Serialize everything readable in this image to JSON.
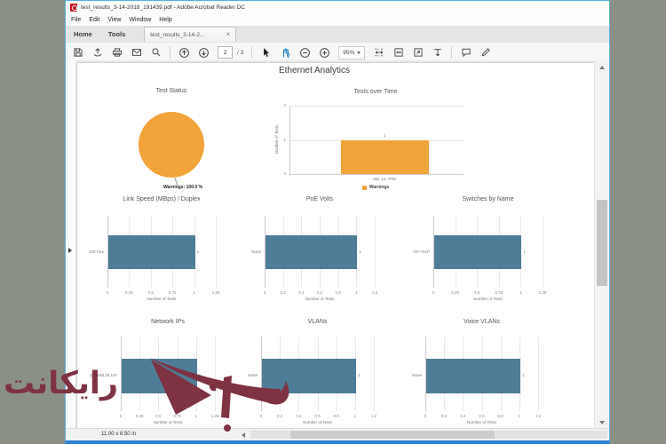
{
  "window": {
    "title": "test_results_3-14-2018_191439.pdf - Adobe Acrobat Reader DC"
  },
  "menu": {
    "items": [
      "File",
      "Edit",
      "View",
      "Window",
      "Help"
    ]
  },
  "tabs": {
    "home": "Home",
    "tools": "Tools",
    "document": "test_results_3-14-2...",
    "close": "×"
  },
  "toolbar": {
    "page_current": "2",
    "page_total": "/ 3",
    "zoom_level": "95%"
  },
  "doc": {
    "heading": "Ethernet Analytics"
  },
  "statusbar": {
    "page_size": "11.00 x 8.50 in"
  },
  "watermark": {
    "text": "رایکانت",
    "color": "#7e3242"
  },
  "colors": {
    "accent_orange": "#F2A33A",
    "accent_teal": "#4F7C96",
    "frame_blue": "#2A80D0"
  },
  "chart_data": [
    {
      "id": "test-status",
      "type": "pie",
      "title": "Test Status",
      "labels": [
        "Warnings"
      ],
      "values": [
        100.0
      ],
      "color": "#F2A33A",
      "annotation": "Warnings: 100.0 %"
    },
    {
      "id": "tests-over-time",
      "type": "bar",
      "title": "Tests over Time",
      "categories": [
        "Mar 14, 7PM"
      ],
      "series": [
        {
          "name": "Warnings",
          "values": [
            1
          ],
          "color": "#F2A33A"
        }
      ],
      "value_labels": [
        "1"
      ],
      "ylabel": "Number of Tests",
      "yticks": [
        0,
        1,
        2
      ],
      "ylim": [
        0,
        2
      ],
      "grid": true,
      "legend_position": "bottom"
    },
    {
      "id": "link-speed",
      "type": "bar",
      "orientation": "horizontal",
      "title": "Link Speed (MBps) / Duplex",
      "categories": [
        "100 FDx"
      ],
      "values": [
        1
      ],
      "value_labels": [
        "1"
      ],
      "xlabel": "Number of Tests",
      "xticks": [
        0,
        0.25,
        0.5,
        0.75,
        1,
        1.25
      ],
      "xlim": [
        0,
        1.25
      ],
      "color": "#4F7C96",
      "grid": true
    },
    {
      "id": "poe-volts",
      "type": "bar",
      "orientation": "horizontal",
      "title": "PoE Volts",
      "categories": [
        "None"
      ],
      "values": [
        1
      ],
      "value_labels": [
        "1"
      ],
      "xlabel": "Number of Tests",
      "xticks": [
        0,
        0.2,
        0.4,
        0.6,
        0.8,
        1,
        1.2
      ],
      "xlim": [
        0,
        1.2
      ],
      "color": "#4F7C96",
      "grid": true
    },
    {
      "id": "switches-by-name",
      "type": "bar",
      "orientation": "horizontal",
      "title": "Switches by Name",
      "categories": [
        "GP-741P"
      ],
      "values": [
        1
      ],
      "value_labels": [
        "1"
      ],
      "xlabel": "Number of Tests",
      "xticks": [
        0,
        0.25,
        0.5,
        0.75,
        1,
        1.25
      ],
      "xlim": [
        0,
        1.25
      ],
      "color": "#4F7C96",
      "grid": true
    },
    {
      "id": "network-ips",
      "type": "bar",
      "orientation": "horizontal",
      "title": "Network IPs",
      "categories": [
        "192.168.18.147"
      ],
      "values": [
        1
      ],
      "value_labels": [
        "1"
      ],
      "xlabel": "Number of Tests",
      "xticks": [
        0,
        0.25,
        0.5,
        0.75,
        1,
        1.25
      ],
      "xlim": [
        0,
        1.25
      ],
      "color": "#4F7C96",
      "grid": true
    },
    {
      "id": "vlans",
      "type": "bar",
      "orientation": "horizontal",
      "title": "VLANs",
      "categories": [
        "None"
      ],
      "values": [
        1
      ],
      "value_labels": [
        "1"
      ],
      "xlabel": "Number of Tests",
      "xticks": [
        0,
        0.2,
        0.4,
        0.6,
        0.8,
        1,
        1.2
      ],
      "xlim": [
        0,
        1.2
      ],
      "color": "#4F7C96",
      "grid": true
    },
    {
      "id": "voice-vlans",
      "type": "bar",
      "orientation": "horizontal",
      "title": "Voice VLANs",
      "categories": [
        "None"
      ],
      "values": [
        1
      ],
      "value_labels": [
        "1"
      ],
      "xlabel": "Number of Tests",
      "xticks": [
        0,
        0.2,
        0.4,
        0.6,
        0.8,
        1,
        1.2
      ],
      "xlim": [
        0,
        1.2
      ],
      "color": "#4F7C96",
      "grid": true
    }
  ]
}
